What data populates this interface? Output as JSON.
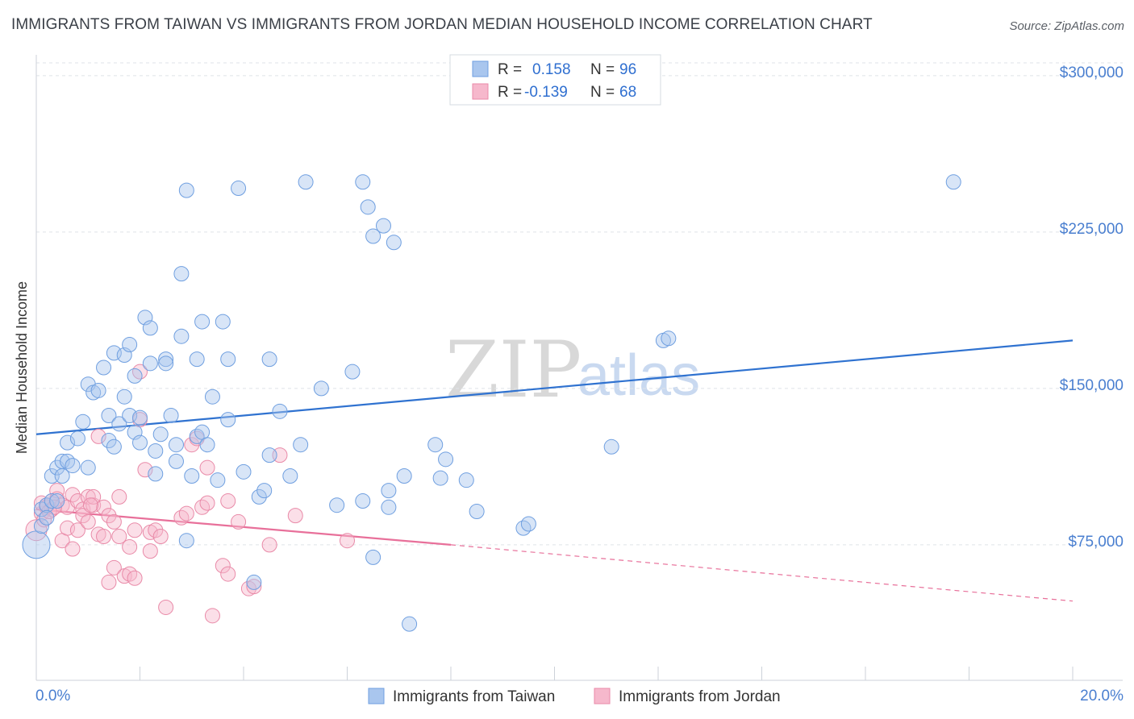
{
  "header": {
    "title": "IMMIGRANTS FROM TAIWAN VS IMMIGRANTS FROM JORDAN MEDIAN HOUSEHOLD INCOME CORRELATION CHART",
    "source": "Source: ZipAtlas.com"
  },
  "watermark": {
    "zip": "ZIP",
    "atlas": "atlas"
  },
  "legend_top": {
    "rows": [
      {
        "r_label": "R =",
        "r_value": "0.158",
        "n_label": "N =",
        "n_value": "96"
      },
      {
        "r_label": "R =",
        "r_value": "-0.139",
        "n_label": "N =",
        "n_value": "68"
      }
    ]
  },
  "legend_bottom": {
    "items": [
      {
        "label": "Immigrants from Taiwan"
      },
      {
        "label": "Immigrants from Jordan"
      }
    ]
  },
  "axes": {
    "ylabel": "Median Household Income",
    "x_ticks": [
      "0.0%",
      "20.0%"
    ],
    "y_ticks": [
      "$300,000",
      "$225,000",
      "$150,000",
      "$75,000"
    ]
  },
  "colors": {
    "taiwan_fill": "#a9c6ee",
    "taiwan_stroke": "#6f9fe0",
    "taiwan_line": "#2f72d0",
    "jordan_fill": "#f6b8cc",
    "jordan_stroke": "#e98aa8",
    "jordan_line": "#e8709a",
    "grid": "#dfe3e8",
    "tick_text": "#4a7fd0"
  },
  "chart_data": {
    "type": "scatter",
    "title": "IMMIGRANTS FROM TAIWAN VS IMMIGRANTS FROM JORDAN MEDIAN HOUSEHOLD INCOME CORRELATION CHART",
    "xlabel": "",
    "ylabel": "Median Household Income",
    "xlim": [
      0,
      20
    ],
    "ylim": [
      10000,
      310000
    ],
    "y_ticks": [
      75000,
      150000,
      225000,
      300000
    ],
    "grid": true,
    "legend_position": "top-center",
    "series": [
      {
        "name": "Immigrants from Taiwan",
        "r": 0.158,
        "n": 96,
        "trend": {
          "x": [
            0,
            20
          ],
          "y": [
            128000,
            173000
          ],
          "style": "solid"
        },
        "points": [
          [
            0.0,
            75000
          ],
          [
            0.1,
            84000
          ],
          [
            0.1,
            92000
          ],
          [
            0.2,
            94000
          ],
          [
            0.3,
            96000
          ],
          [
            0.3,
            108000
          ],
          [
            0.4,
            112000
          ],
          [
            0.5,
            108000
          ],
          [
            0.5,
            115000
          ],
          [
            0.6,
            115000
          ],
          [
            0.6,
            124000
          ],
          [
            0.7,
            113000
          ],
          [
            0.8,
            126000
          ],
          [
            0.9,
            134000
          ],
          [
            1.0,
            152000
          ],
          [
            1.1,
            148000
          ],
          [
            1.2,
            149000
          ],
          [
            1.3,
            160000
          ],
          [
            1.4,
            125000
          ],
          [
            1.4,
            137000
          ],
          [
            1.5,
            122000
          ],
          [
            1.5,
            167000
          ],
          [
            1.6,
            133000
          ],
          [
            1.7,
            166000
          ],
          [
            1.7,
            146000
          ],
          [
            1.8,
            137000
          ],
          [
            1.8,
            171000
          ],
          [
            1.9,
            156000
          ],
          [
            1.9,
            129000
          ],
          [
            2.0,
            136000
          ],
          [
            2.0,
            124000
          ],
          [
            2.1,
            184000
          ],
          [
            2.2,
            179000
          ],
          [
            2.2,
            162000
          ],
          [
            2.3,
            109000
          ],
          [
            2.4,
            128000
          ],
          [
            2.5,
            164000
          ],
          [
            2.5,
            162000
          ],
          [
            2.6,
            137000
          ],
          [
            2.7,
            115000
          ],
          [
            2.7,
            123000
          ],
          [
            2.8,
            175000
          ],
          [
            2.8,
            205000
          ],
          [
            2.9,
            77000
          ],
          [
            2.9,
            245000
          ],
          [
            3.0,
            108000
          ],
          [
            3.1,
            127000
          ],
          [
            3.1,
            164000
          ],
          [
            3.2,
            182000
          ],
          [
            3.2,
            129000
          ],
          [
            3.3,
            123000
          ],
          [
            3.4,
            146000
          ],
          [
            3.5,
            106000
          ],
          [
            3.6,
            182000
          ],
          [
            3.7,
            135000
          ],
          [
            3.7,
            164000
          ],
          [
            3.9,
            246000
          ],
          [
            4.0,
            110000
          ],
          [
            4.2,
            57000
          ],
          [
            4.3,
            98000
          ],
          [
            4.4,
            101000
          ],
          [
            4.5,
            164000
          ],
          [
            4.5,
            118000
          ],
          [
            4.7,
            139000
          ],
          [
            4.9,
            108000
          ],
          [
            5.1,
            123000
          ],
          [
            5.2,
            249000
          ],
          [
            5.5,
            150000
          ],
          [
            5.8,
            94000
          ],
          [
            6.1,
            158000
          ],
          [
            6.3,
            249000
          ],
          [
            6.3,
            96000
          ],
          [
            6.4,
            237000
          ],
          [
            6.5,
            223000
          ],
          [
            6.5,
            69000
          ],
          [
            6.7,
            228000
          ],
          [
            6.8,
            101000
          ],
          [
            6.8,
            93000
          ],
          [
            6.9,
            220000
          ],
          [
            7.1,
            108000
          ],
          [
            7.2,
            37000
          ],
          [
            7.7,
            123000
          ],
          [
            7.8,
            107000
          ],
          [
            7.9,
            116000
          ],
          [
            8.3,
            106000
          ],
          [
            8.5,
            91000
          ],
          [
            9.4,
            83000
          ],
          [
            9.5,
            85000
          ],
          [
            11.1,
            122000
          ],
          [
            12.1,
            173000
          ],
          [
            12.2,
            174000
          ],
          [
            17.7,
            249000
          ],
          [
            0.2,
            88000
          ],
          [
            0.4,
            96000
          ],
          [
            1.0,
            112000
          ],
          [
            2.3,
            120000
          ]
        ]
      },
      {
        "name": "Immigrants from Jordan",
        "r": -0.139,
        "n": 68,
        "trend": {
          "x": [
            0,
            8
          ],
          "y": [
            92000,
            75000
          ],
          "style": "solid",
          "extended": {
            "x": [
              8,
              20
            ],
            "y": [
              75000,
              48000
            ],
            "style": "dashed"
          }
        },
        "points": [
          [
            0.0,
            82000
          ],
          [
            0.1,
            90000
          ],
          [
            0.1,
            95000
          ],
          [
            0.2,
            94000
          ],
          [
            0.2,
            93000
          ],
          [
            0.3,
            92000
          ],
          [
            0.3,
            96000
          ],
          [
            0.4,
            101000
          ],
          [
            0.4,
            97000
          ],
          [
            0.5,
            77000
          ],
          [
            0.5,
            94000
          ],
          [
            0.6,
            83000
          ],
          [
            0.6,
            93000
          ],
          [
            0.7,
            73000
          ],
          [
            0.7,
            99000
          ],
          [
            0.8,
            82000
          ],
          [
            0.8,
            96000
          ],
          [
            0.9,
            92000
          ],
          [
            0.9,
            89000
          ],
          [
            1.0,
            86000
          ],
          [
            1.0,
            98000
          ],
          [
            1.1,
            94000
          ],
          [
            1.1,
            98000
          ],
          [
            1.2,
            127000
          ],
          [
            1.2,
            80000
          ],
          [
            1.3,
            93000
          ],
          [
            1.3,
            79000
          ],
          [
            1.4,
            89000
          ],
          [
            1.4,
            57000
          ],
          [
            1.5,
            64000
          ],
          [
            1.5,
            86000
          ],
          [
            1.6,
            79000
          ],
          [
            1.6,
            98000
          ],
          [
            1.7,
            60000
          ],
          [
            1.8,
            74000
          ],
          [
            1.8,
            61000
          ],
          [
            1.9,
            82000
          ],
          [
            1.9,
            59000
          ],
          [
            2.0,
            135000
          ],
          [
            2.0,
            158000
          ],
          [
            2.1,
            111000
          ],
          [
            2.2,
            72000
          ],
          [
            2.2,
            81000
          ],
          [
            2.3,
            82000
          ],
          [
            2.5,
            45000
          ],
          [
            2.8,
            88000
          ],
          [
            2.9,
            90000
          ],
          [
            3.0,
            123000
          ],
          [
            3.1,
            126000
          ],
          [
            3.2,
            93000
          ],
          [
            3.3,
            112000
          ],
          [
            3.3,
            95000
          ],
          [
            3.4,
            41000
          ],
          [
            3.6,
            65000
          ],
          [
            3.7,
            96000
          ],
          [
            3.7,
            61000
          ],
          [
            3.9,
            86000
          ],
          [
            4.1,
            54000
          ],
          [
            4.2,
            55000
          ],
          [
            4.5,
            75000
          ],
          [
            4.7,
            118000
          ],
          [
            5.0,
            89000
          ],
          [
            6.0,
            77000
          ],
          [
            0.15,
            87000
          ],
          [
            0.25,
            91000
          ],
          [
            0.35,
            93000
          ],
          [
            1.05,
            94000
          ],
          [
            2.4,
            79000
          ]
        ]
      }
    ]
  }
}
